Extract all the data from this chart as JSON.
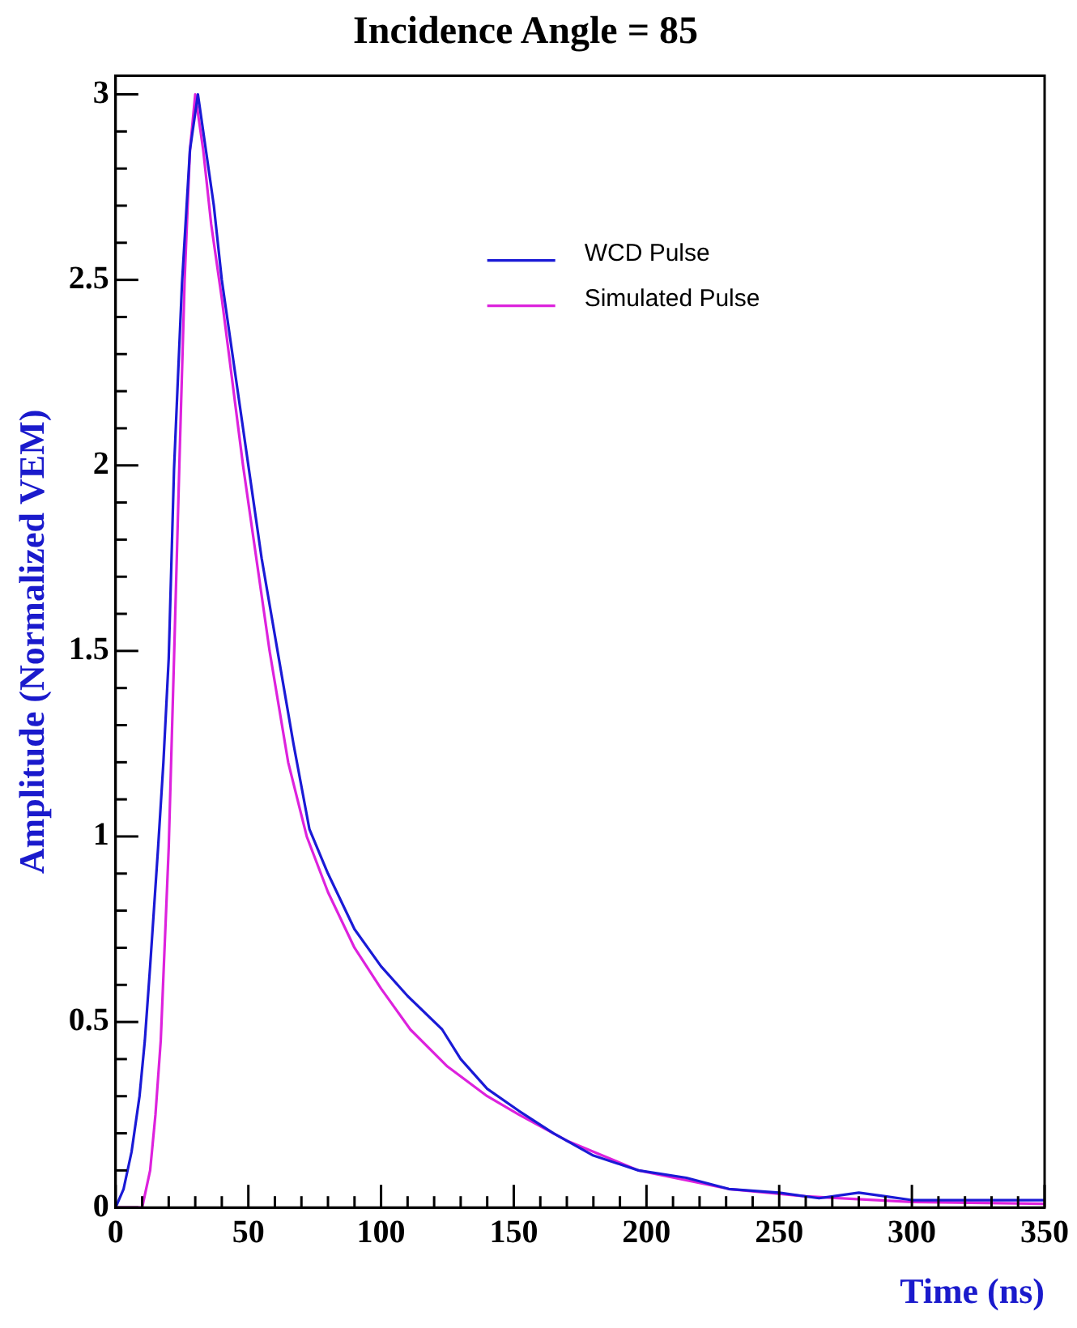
{
  "chart_data": {
    "type": "line",
    "title": "Incidence Angle = 85",
    "xlabel": "Time (ns)",
    "ylabel": "Amplitude (Normalized VEM)",
    "xlim": [
      0,
      350
    ],
    "ylim": [
      0,
      3.05
    ],
    "xticks": [
      0,
      {
        "value": 10,
        "label": null
      },
      {
        "value": 20,
        "label": null
      },
      {
        "value": 30,
        "label": null
      },
      {
        "value": 40,
        "label": null
      },
      50,
      {
        "value": 60,
        "label": null
      },
      {
        "value": 70,
        "label": null
      },
      {
        "value": 80,
        "label": null
      },
      {
        "value": 90,
        "label": null
      },
      100,
      {
        "value": 110,
        "label": null
      },
      {
        "value": 120,
        "label": null
      },
      {
        "value": 130,
        "label": null
      },
      {
        "value": 140,
        "label": null
      },
      150,
      {
        "value": 160,
        "label": null
      },
      {
        "value": 170,
        "label": null
      },
      {
        "value": 180,
        "label": null
      },
      {
        "value": 190,
        "label": null
      },
      200,
      {
        "value": 210,
        "label": null
      },
      {
        "value": 220,
        "label": null
      },
      {
        "value": 230,
        "label": null
      },
      {
        "value": 240,
        "label": null
      },
      250,
      {
        "value": 260,
        "label": null
      },
      {
        "value": 270,
        "label": null
      },
      {
        "value": 280,
        "label": null
      },
      {
        "value": 290,
        "label": null
      },
      300,
      {
        "value": 310,
        "label": null
      },
      {
        "value": 320,
        "label": null
      },
      {
        "value": 330,
        "label": null
      },
      {
        "value": 340,
        "label": null
      },
      350
    ],
    "yticks": [
      0,
      {
        "value": 0.1,
        "label": null
      },
      {
        "value": 0.2,
        "label": null
      },
      {
        "value": 0.3,
        "label": null
      },
      {
        "value": 0.4,
        "label": null
      },
      0.5,
      {
        "value": 0.6,
        "label": null
      },
      {
        "value": 0.7,
        "label": null
      },
      {
        "value": 0.8,
        "label": null
      },
      {
        "value": 0.9,
        "label": null
      },
      1,
      {
        "value": 1.1,
        "label": null
      },
      {
        "value": 1.2,
        "label": null
      },
      {
        "value": 1.3,
        "label": null
      },
      {
        "value": 1.4,
        "label": null
      },
      1.5,
      {
        "value": 1.6,
        "label": null
      },
      {
        "value": 1.7,
        "label": null
      },
      {
        "value": 1.8,
        "label": null
      },
      {
        "value": 1.9,
        "label": null
      },
      2,
      {
        "value": 2.1,
        "label": null
      },
      {
        "value": 2.2,
        "label": null
      },
      {
        "value": 2.3,
        "label": null
      },
      {
        "value": 2.4,
        "label": null
      },
      2.5,
      {
        "value": 2.6,
        "label": null
      },
      {
        "value": 2.7,
        "label": null
      },
      {
        "value": 2.8,
        "label": null
      },
      {
        "value": 2.9,
        "label": null
      },
      3
    ],
    "grid": false,
    "legend": "top right",
    "marker": "none",
    "line_style": "solid",
    "series": [
      {
        "name": "WCD Pulse",
        "color": "#1a1ad6",
        "x": [
          0,
          3,
          6,
          9,
          11,
          13,
          16,
          18,
          20,
          22,
          25,
          28,
          31,
          34,
          37,
          40,
          45,
          50,
          55,
          61,
          67,
          73,
          80,
          90,
          100,
          110,
          123,
          130,
          140,
          152,
          165,
          180,
          197,
          215,
          231,
          250,
          265,
          280,
          290,
          300,
          320,
          350
        ],
        "values": [
          0,
          0.05,
          0.15,
          0.3,
          0.45,
          0.65,
          0.97,
          1.2,
          1.48,
          1.99,
          2.49,
          2.85,
          3.0,
          2.85,
          2.7,
          2.5,
          2.25,
          2.0,
          1.75,
          1.5,
          1.25,
          1.02,
          0.9,
          0.75,
          0.65,
          0.57,
          0.48,
          0.4,
          0.32,
          0.26,
          0.2,
          0.14,
          0.1,
          0.08,
          0.05,
          0.04,
          0.025,
          0.04,
          0.03,
          0.02,
          0.02,
          0.02
        ]
      },
      {
        "name": "Simulated Pulse",
        "color": "#dd22dd",
        "x": [
          0,
          10,
          13,
          15,
          17,
          20,
          22,
          24,
          26,
          28,
          30,
          33,
          36,
          40,
          48,
          58,
          65,
          72,
          80,
          90,
          100,
          111,
          125,
          140,
          152,
          170,
          197,
          231,
          260,
          300,
          350
        ],
        "values": [
          0,
          0,
          0.1,
          0.25,
          0.45,
          0.97,
          1.48,
          2.0,
          2.5,
          2.85,
          3.0,
          2.85,
          2.65,
          2.45,
          2.0,
          1.5,
          1.2,
          1.0,
          0.85,
          0.7,
          0.59,
          0.48,
          0.38,
          0.3,
          0.25,
          0.18,
          0.1,
          0.05,
          0.03,
          0.015,
          0.01
        ]
      }
    ]
  }
}
